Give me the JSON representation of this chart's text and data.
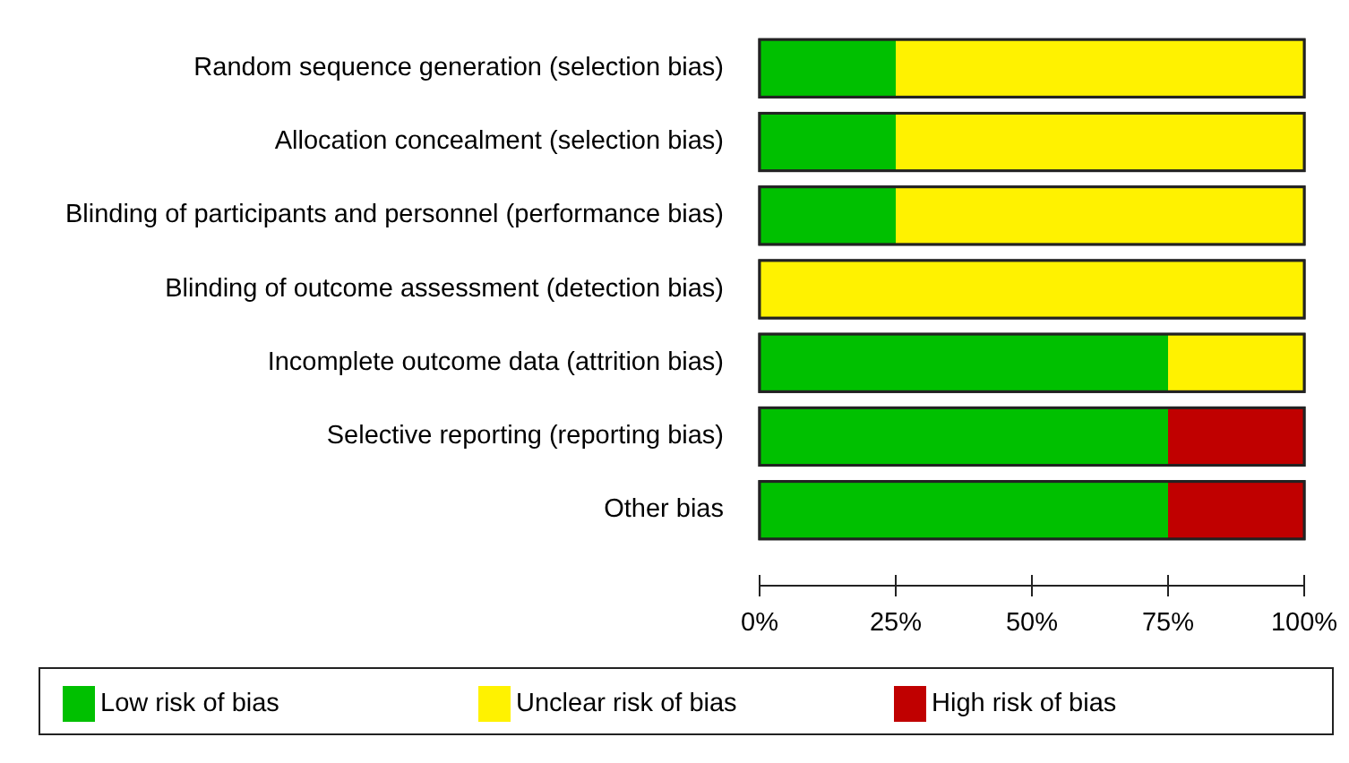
{
  "chart_data": {
    "type": "bar",
    "orientation": "horizontal",
    "stacked": true,
    "categories": [
      "Random sequence generation (selection bias)",
      "Allocation concealment (selection bias)",
      "Blinding of participants and personnel (performance bias)",
      "Blinding of outcome assessment (detection bias)",
      "Incomplete outcome data (attrition bias)",
      "Selective reporting (reporting bias)",
      "Other bias"
    ],
    "series": [
      {
        "name": "Low risk of bias",
        "color": "#00c000",
        "values": [
          25,
          25,
          25,
          0,
          75,
          75,
          75
        ]
      },
      {
        "name": "Unclear risk of bias",
        "color": "#fff200",
        "values": [
          75,
          75,
          75,
          100,
          25,
          0,
          0
        ]
      },
      {
        "name": "High risk of bias",
        "color": "#c00000",
        "values": [
          0,
          0,
          0,
          0,
          0,
          25,
          25
        ]
      }
    ],
    "xlim": [
      0,
      100
    ],
    "xticks": [
      {
        "value": 0,
        "label": "0%"
      },
      {
        "value": 25,
        "label": "25%"
      },
      {
        "value": 50,
        "label": "50%"
      },
      {
        "value": 75,
        "label": "75%"
      },
      {
        "value": 100,
        "label": "100%"
      }
    ],
    "grid": false,
    "legend": "bottom"
  }
}
